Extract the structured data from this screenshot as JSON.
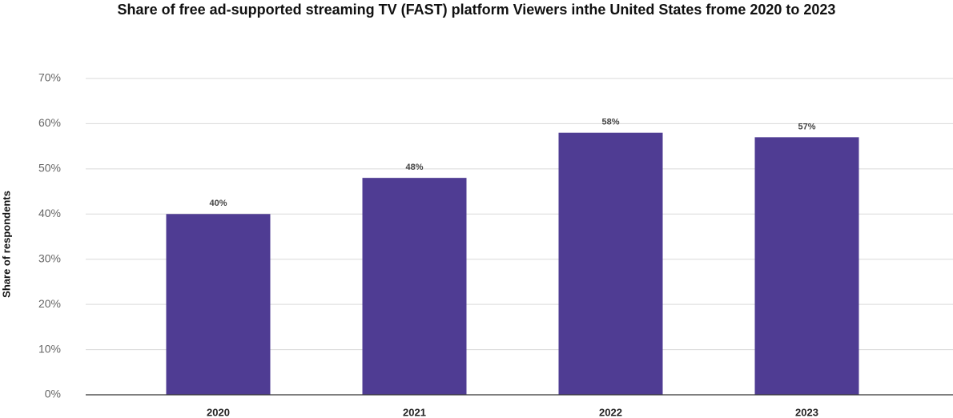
{
  "chart_data": {
    "type": "bar",
    "title": "Share of free ad-supported streaming TV (FAST) platform Viewers inthe United States frome 2020 to 2023",
    "y_label": "Share of respondents",
    "categories": [
      "2020",
      "2021",
      "2022",
      "2023"
    ],
    "values": [
      40,
      48,
      58,
      57
    ],
    "value_labels": [
      "40%",
      "48%",
      "58%",
      "57%"
    ],
    "color": "#4f3c93",
    "ylim": [
      0,
      70
    ],
    "yticks": [
      {
        "value": 0,
        "label": "0%"
      },
      {
        "value": 10,
        "label": "10%"
      },
      {
        "value": 20,
        "label": "20%"
      },
      {
        "value": 30,
        "label": "30%"
      },
      {
        "value": 40,
        "label": "40%"
      },
      {
        "value": 50,
        "label": "50%"
      },
      {
        "value": 60,
        "label": "60%"
      },
      {
        "value": 70,
        "label": "70%"
      }
    ],
    "grid": true
  }
}
